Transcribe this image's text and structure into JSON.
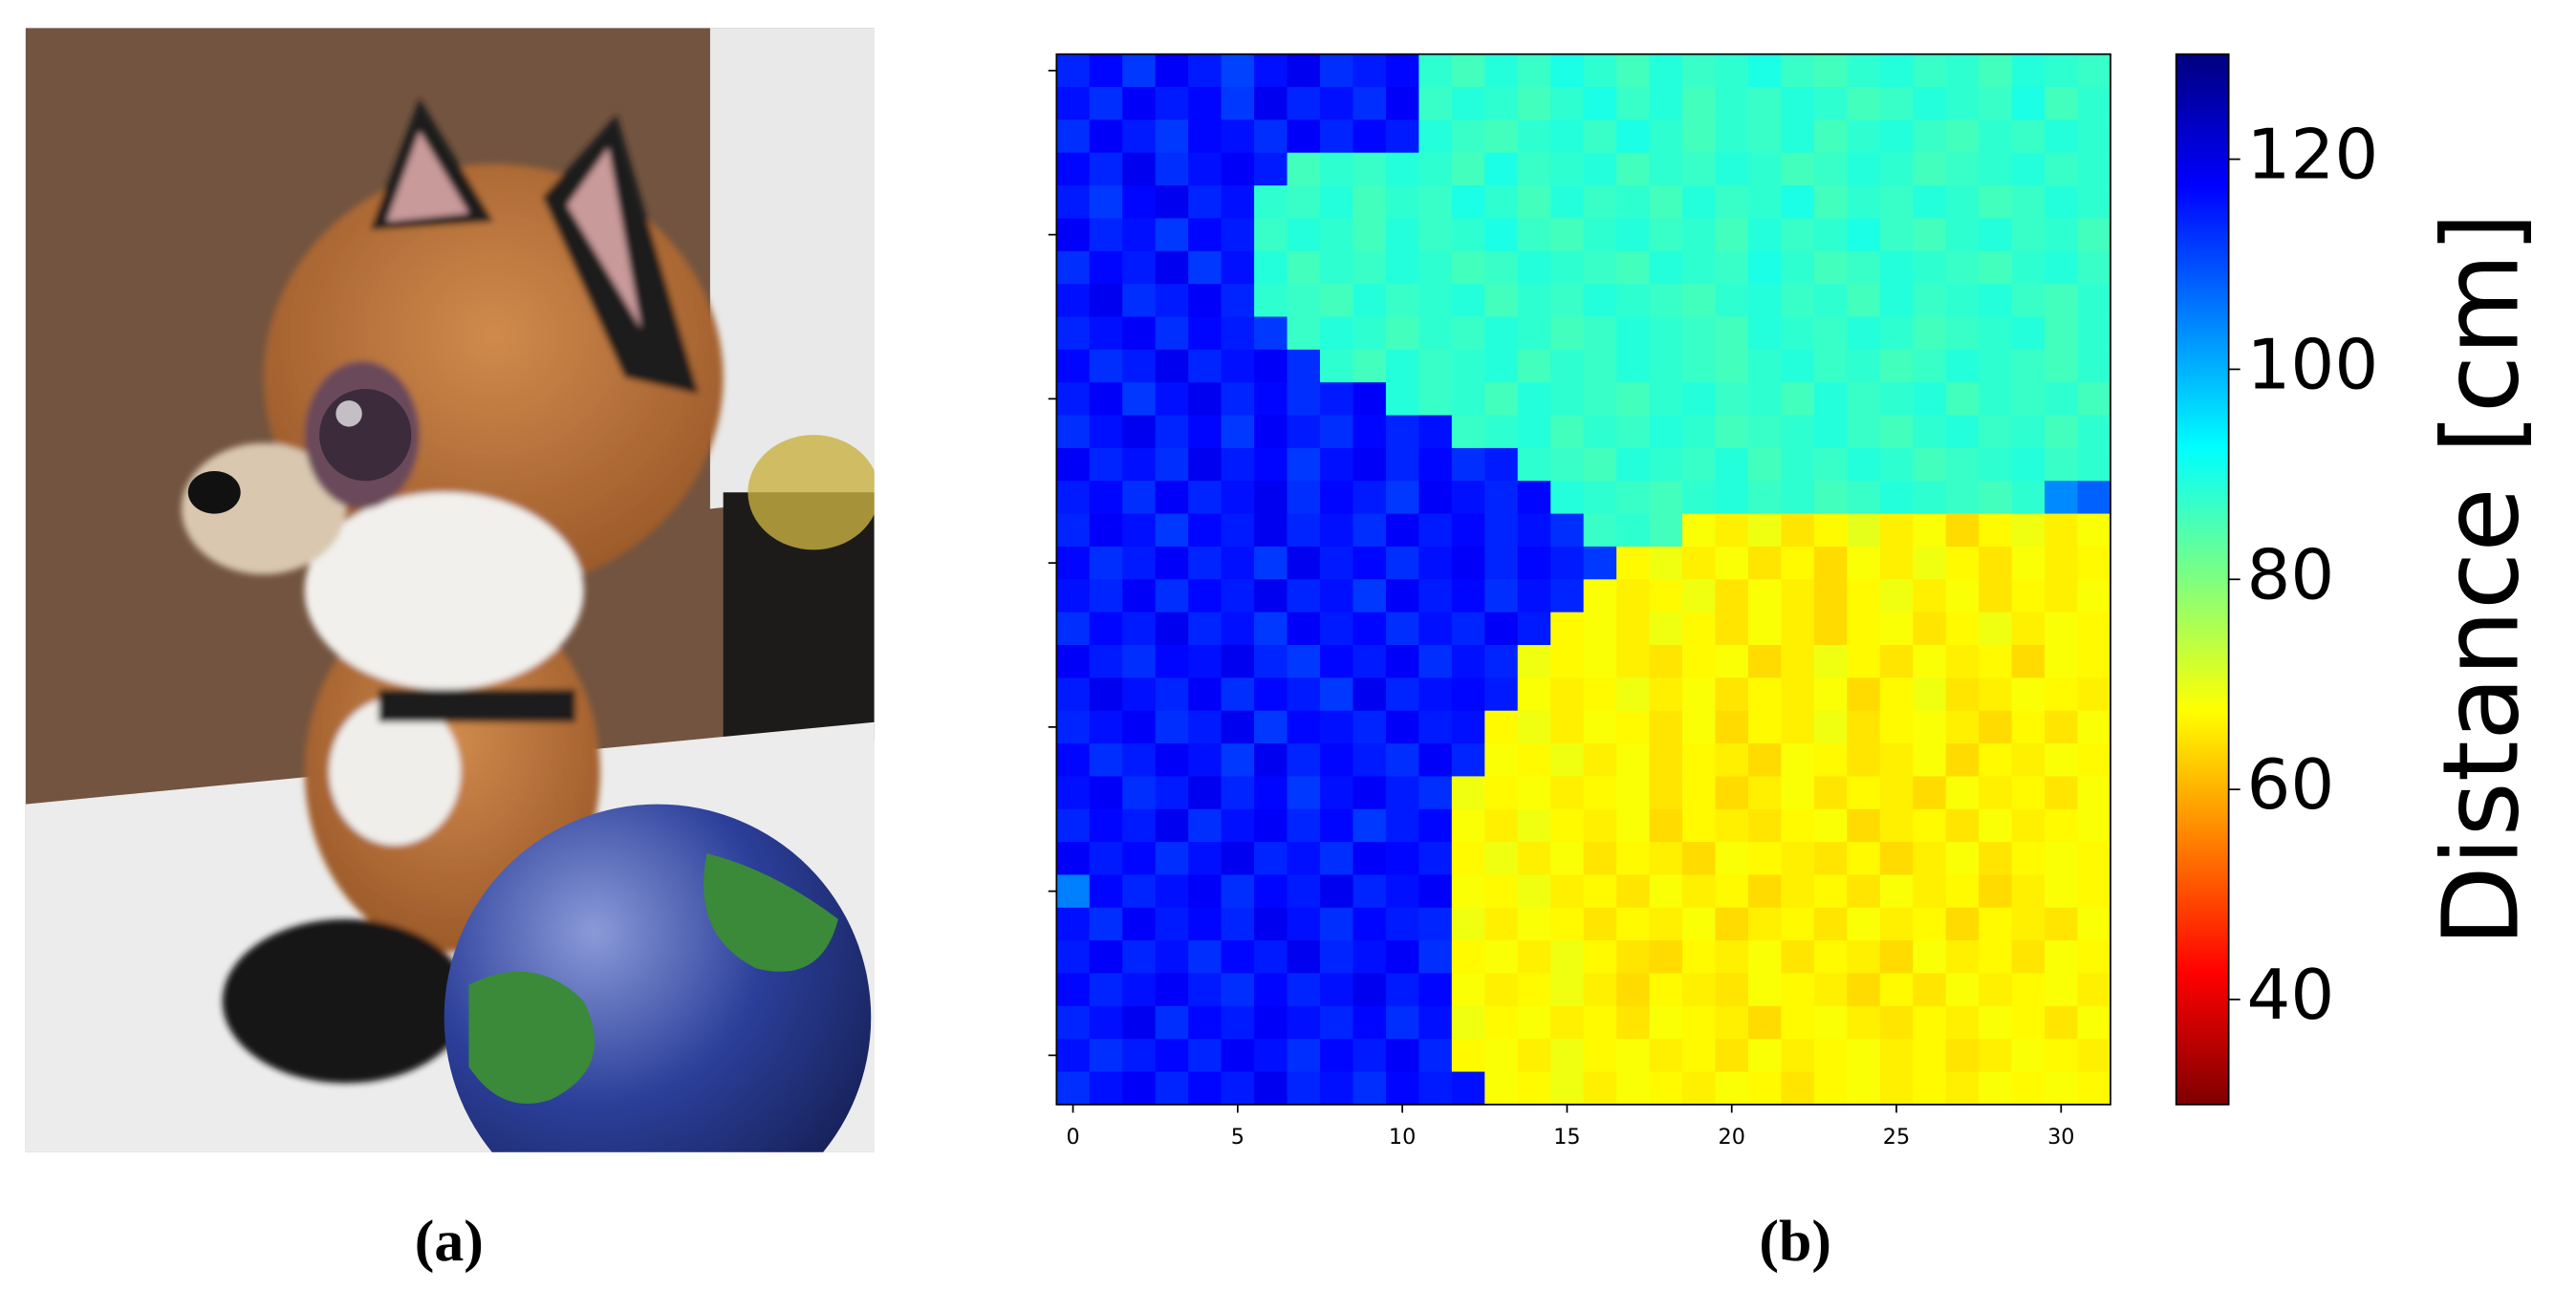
{
  "chart_data": {
    "type": "heatmap",
    "colormap": "jet_r",
    "clim": [
      30,
      130
    ],
    "colorbar_label": "Distance [cm]",
    "colorbar_ticks": [
      40,
      60,
      80,
      100,
      120
    ],
    "xlim": [
      -0.5,
      31.5
    ],
    "xticks": [
      0,
      5,
      10,
      15,
      20,
      25,
      30
    ],
    "ylim": [
      -0.5,
      31.5
    ],
    "yticks": [
      0,
      5,
      10,
      15,
      20,
      25,
      30
    ],
    "values": [
      [
        114,
        117,
        112,
        118,
        115,
        111,
        116,
        119,
        113,
        115,
        117,
        88,
        86,
        89,
        87,
        90,
        88,
        86,
        89,
        87,
        88,
        90,
        87,
        86,
        88,
        89,
        87,
        88,
        86,
        89,
        88,
        87
      ],
      [
        116,
        113,
        118,
        115,
        117,
        112,
        119,
        114,
        116,
        113,
        118,
        87,
        89,
        88,
        86,
        88,
        90,
        87,
        89,
        86,
        88,
        87,
        89,
        88,
        86,
        87,
        89,
        88,
        87,
        90,
        86,
        88
      ],
      [
        113,
        118,
        115,
        112,
        117,
        116,
        113,
        118,
        114,
        117,
        115,
        89,
        87,
        86,
        88,
        89,
        87,
        90,
        88,
        86,
        88,
        87,
        89,
        86,
        88,
        89,
        87,
        86,
        88,
        87,
        89,
        88
      ],
      [
        117,
        114,
        119,
        113,
        116,
        118,
        115,
        86,
        88,
        87,
        89,
        88,
        86,
        90,
        87,
        88,
        89,
        86,
        88,
        87,
        89,
        88,
        86,
        87,
        89,
        88,
        86,
        87,
        88,
        89,
        87,
        88
      ],
      [
        115,
        112,
        117,
        119,
        114,
        116,
        88,
        87,
        89,
        86,
        88,
        87,
        90,
        88,
        86,
        89,
        87,
        88,
        86,
        89,
        87,
        88,
        90,
        86,
        88,
        87,
        89,
        88,
        86,
        87,
        89,
        88
      ],
      [
        118,
        114,
        116,
        112,
        117,
        115,
        87,
        89,
        88,
        86,
        89,
        87,
        88,
        90,
        87,
        86,
        88,
        89,
        87,
        88,
        86,
        89,
        87,
        88,
        90,
        87,
        86,
        88,
        89,
        87,
        88,
        86
      ],
      [
        113,
        117,
        115,
        119,
        112,
        116,
        89,
        86,
        88,
        87,
        89,
        88,
        86,
        87,
        89,
        88,
        87,
        86,
        89,
        88,
        87,
        90,
        88,
        86,
        87,
        89,
        88,
        87,
        86,
        88,
        89,
        87
      ],
      [
        116,
        119,
        113,
        115,
        118,
        114,
        88,
        87,
        86,
        89,
        87,
        88,
        89,
        86,
        88,
        87,
        89,
        88,
        87,
        86,
        88,
        89,
        87,
        88,
        86,
        89,
        87,
        88,
        89,
        87,
        86,
        88
      ],
      [
        114,
        116,
        118,
        113,
        117,
        115,
        112,
        87,
        89,
        88,
        86,
        88,
        87,
        89,
        88,
        86,
        87,
        89,
        88,
        87,
        86,
        89,
        88,
        87,
        89,
        88,
        86,
        87,
        88,
        89,
        86,
        88
      ],
      [
        117,
        113,
        115,
        119,
        114,
        116,
        118,
        113,
        88,
        86,
        89,
        87,
        88,
        89,
        86,
        88,
        87,
        89,
        88,
        87,
        86,
        88,
        89,
        87,
        88,
        86,
        87,
        89,
        88,
        87,
        86,
        88
      ],
      [
        115,
        118,
        112,
        116,
        119,
        114,
        117,
        113,
        115,
        118,
        89,
        87,
        88,
        86,
        89,
        88,
        87,
        86,
        88,
        89,
        87,
        88,
        86,
        89,
        87,
        88,
        89,
        86,
        88,
        87,
        88,
        86
      ],
      [
        113,
        116,
        119,
        114,
        117,
        112,
        118,
        115,
        113,
        117,
        114,
        116,
        87,
        88,
        89,
        86,
        88,
        87,
        89,
        88,
        86,
        87,
        88,
        89,
        87,
        86,
        88,
        89,
        87,
        88,
        86,
        88
      ],
      [
        118,
        114,
        116,
        113,
        119,
        115,
        117,
        112,
        116,
        118,
        114,
        117,
        113,
        115,
        88,
        87,
        86,
        89,
        88,
        87,
        89,
        86,
        88,
        87,
        89,
        88,
        86,
        87,
        88,
        89,
        87,
        88
      ],
      [
        115,
        117,
        113,
        118,
        114,
        116,
        119,
        113,
        117,
        115,
        112,
        118,
        116,
        114,
        117,
        89,
        88,
        87,
        86,
        88,
        89,
        87,
        88,
        86,
        87,
        89,
        88,
        87,
        86,
        88,
        104,
        108
      ],
      [
        114,
        118,
        116,
        112,
        117,
        115,
        119,
        114,
        116,
        113,
        118,
        115,
        117,
        114,
        116,
        113,
        87,
        88,
        86,
        68,
        66,
        69,
        65,
        67,
        70,
        66,
        68,
        64,
        67,
        69,
        66,
        68
      ],
      [
        117,
        113,
        115,
        118,
        114,
        116,
        112,
        119,
        115,
        117,
        113,
        116,
        118,
        114,
        117,
        115,
        112,
        67,
        69,
        66,
        68,
        65,
        67,
        64,
        68,
        66,
        69,
        67,
        65,
        68,
        66,
        67
      ],
      [
        116,
        114,
        118,
        113,
        117,
        115,
        119,
        114,
        116,
        112,
        118,
        115,
        117,
        113,
        116,
        114,
        68,
        66,
        67,
        69,
        65,
        68,
        66,
        64,
        67,
        69,
        66,
        68,
        65,
        67,
        66,
        68
      ],
      [
        113,
        117,
        115,
        119,
        114,
        116,
        112,
        118,
        115,
        117,
        113,
        116,
        114,
        118,
        115,
        67,
        68,
        66,
        69,
        67,
        65,
        68,
        66,
        64,
        67,
        68,
        65,
        67,
        69,
        66,
        68,
        67
      ],
      [
        118,
        115,
        113,
        117,
        116,
        119,
        114,
        112,
        117,
        115,
        118,
        113,
        116,
        114,
        69,
        67,
        68,
        66,
        65,
        67,
        68,
        64,
        66,
        69,
        67,
        65,
        68,
        66,
        67,
        64,
        68,
        67
      ],
      [
        115,
        119,
        116,
        114,
        118,
        113,
        117,
        115,
        112,
        119,
        114,
        116,
        117,
        115,
        68,
        66,
        67,
        69,
        66,
        68,
        65,
        67,
        66,
        68,
        64,
        67,
        69,
        65,
        66,
        68,
        67,
        66
      ],
      [
        114,
        116,
        118,
        113,
        115,
        119,
        112,
        117,
        116,
        114,
        118,
        115,
        116,
        67,
        69,
        66,
        68,
        67,
        65,
        68,
        64,
        67,
        66,
        69,
        65,
        67,
        68,
        66,
        64,
        67,
        65,
        68
      ],
      [
        117,
        113,
        115,
        118,
        116,
        112,
        119,
        114,
        117,
        115,
        113,
        118,
        114,
        68,
        67,
        69,
        66,
        68,
        65,
        67,
        66,
        64,
        68,
        67,
        65,
        66,
        68,
        64,
        67,
        66,
        68,
        67
      ],
      [
        116,
        118,
        113,
        115,
        119,
        114,
        117,
        112,
        116,
        118,
        115,
        113,
        69,
        67,
        68,
        66,
        67,
        68,
        65,
        67,
        64,
        66,
        68,
        65,
        67,
        66,
        64,
        68,
        66,
        67,
        65,
        68
      ],
      [
        114,
        117,
        115,
        119,
        113,
        116,
        118,
        114,
        117,
        112,
        115,
        117,
        68,
        66,
        69,
        67,
        66,
        68,
        64,
        67,
        66,
        65,
        67,
        68,
        64,
        66,
        67,
        65,
        68,
        66,
        67,
        68
      ],
      [
        118,
        115,
        117,
        113,
        116,
        119,
        114,
        116,
        113,
        118,
        117,
        115,
        67,
        69,
        66,
        68,
        65,
        67,
        66,
        64,
        68,
        67,
        66,
        65,
        67,
        64,
        66,
        68,
        65,
        67,
        68,
        67
      ],
      [
        105,
        117,
        114,
        116,
        118,
        113,
        117,
        115,
        119,
        114,
        116,
        118,
        68,
        67,
        69,
        66,
        67,
        65,
        68,
        66,
        67,
        64,
        66,
        67,
        65,
        68,
        66,
        67,
        64,
        66,
        68,
        67
      ],
      [
        116,
        113,
        118,
        115,
        117,
        114,
        119,
        116,
        113,
        117,
        115,
        114,
        69,
        66,
        68,
        67,
        65,
        67,
        66,
        68,
        64,
        66,
        67,
        65,
        68,
        66,
        67,
        64,
        67,
        66,
        65,
        68
      ],
      [
        115,
        118,
        114,
        116,
        113,
        117,
        115,
        119,
        114,
        116,
        118,
        113,
        67,
        68,
        66,
        69,
        67,
        65,
        64,
        67,
        66,
        68,
        65,
        67,
        66,
        64,
        68,
        66,
        67,
        65,
        68,
        67
      ],
      [
        117,
        114,
        116,
        118,
        115,
        113,
        117,
        114,
        116,
        119,
        115,
        117,
        68,
        66,
        67,
        69,
        66,
        64,
        67,
        66,
        65,
        68,
        67,
        66,
        64,
        67,
        65,
        68,
        66,
        67,
        68,
        66
      ],
      [
        114,
        116,
        119,
        113,
        117,
        115,
        118,
        116,
        114,
        117,
        113,
        116,
        69,
        67,
        68,
        66,
        67,
        65,
        68,
        67,
        66,
        64,
        67,
        68,
        66,
        65,
        67,
        66,
        68,
        67,
        65,
        68
      ],
      [
        116,
        113,
        115,
        117,
        114,
        118,
        116,
        113,
        117,
        115,
        118,
        114,
        67,
        68,
        66,
        69,
        67,
        68,
        66,
        67,
        65,
        68,
        66,
        67,
        68,
        66,
        67,
        65,
        66,
        68,
        67,
        66
      ],
      [
        113,
        116,
        118,
        114,
        117,
        115,
        119,
        114,
        116,
        113,
        117,
        115,
        116,
        68,
        67,
        69,
        66,
        68,
        67,
        66,
        68,
        67,
        65,
        67,
        68,
        66,
        67,
        66,
        68,
        67,
        68,
        67
      ]
    ]
  },
  "captions": [
    "(a)",
    "(b)"
  ]
}
